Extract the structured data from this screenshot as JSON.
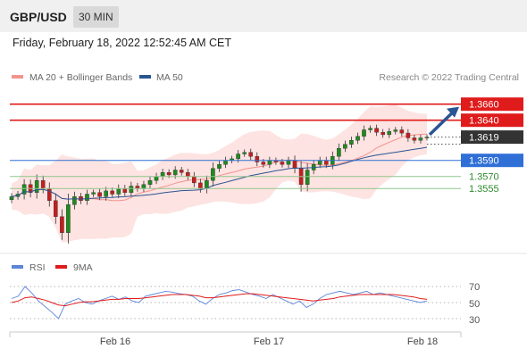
{
  "header": {
    "symbol": "GBP/USD",
    "timeframe": "30 MIN"
  },
  "timestamp": "Friday, February 18, 2022 12:52:45 AM CET",
  "legend": {
    "items": [
      {
        "label": "MA 20 + Bollinger Bands",
        "color": "#f4938c"
      },
      {
        "label": "MA 50",
        "color": "#2a5593"
      }
    ],
    "source": "Research © 2022 Trading Central"
  },
  "rsi_legend": {
    "items": [
      {
        "label": "RSI",
        "color": "#5b85d9"
      },
      {
        "label": "9MA",
        "color": "#e01b1b"
      }
    ]
  },
  "chart_data": {
    "type": "candlestick",
    "x_labels": [
      "Feb 16",
      "Feb 17",
      "Feb 18"
    ],
    "ylim": [
      1.3483,
      1.3683
    ],
    "current_price": "1.3619",
    "levels": [
      {
        "label": "1.3660",
        "value": 1.366,
        "type": "resistance",
        "color": "#e01b1b"
      },
      {
        "label": "1.3640",
        "value": 1.364,
        "type": "resistance",
        "color": "#e01b1b"
      },
      {
        "label": "1.3590",
        "value": 1.359,
        "type": "pivot",
        "color": "#2f6fd6"
      },
      {
        "label": "1.3570",
        "value": 1.357,
        "type": "support",
        "color": "#2e8b2e"
      },
      {
        "label": "1.3555",
        "value": 1.3555,
        "type": "support",
        "color": "#2e8b2e"
      }
    ],
    "close_series": [
      1.3545,
      1.3548,
      1.356,
      1.355,
      1.3565,
      1.3555,
      1.354,
      1.352,
      1.35,
      1.3535,
      1.3545,
      1.354,
      1.3548,
      1.355,
      1.3545,
      1.3552,
      1.3548,
      1.3555,
      1.355,
      1.3558,
      1.3555,
      1.356,
      1.3565,
      1.357,
      1.3575,
      1.3572,
      1.3578,
      1.3575,
      1.357,
      1.3562,
      1.3555,
      1.3565,
      1.358,
      1.3585,
      1.359,
      1.3592,
      1.3598,
      1.36,
      1.3595,
      1.3588,
      1.3585,
      1.359,
      1.3588,
      1.3585,
      1.359,
      1.358,
      1.356,
      1.3578,
      1.3585,
      1.359,
      1.3585,
      1.3595,
      1.3605,
      1.361,
      1.3615,
      1.362,
      1.3628,
      1.363,
      1.3625,
      1.3622,
      1.3626,
      1.3628,
      1.3624,
      1.3618,
      1.3615,
      1.3618,
      1.3619
    ],
    "rsi": {
      "levels": [
        70,
        50,
        30
      ],
      "ylim": [
        20,
        80
      ],
      "rsi_series": [
        55,
        58,
        70,
        62,
        52,
        45,
        38,
        30,
        48,
        52,
        55,
        50,
        48,
        52,
        55,
        58,
        54,
        57,
        52,
        50,
        58,
        60,
        62,
        64,
        63,
        61,
        60,
        58,
        52,
        48,
        55,
        60,
        62,
        65,
        66,
        63,
        60,
        58,
        55,
        60,
        56,
        52,
        48,
        52,
        44,
        48,
        55,
        60,
        62,
        64,
        62,
        60,
        62,
        64,
        60,
        62,
        60,
        58,
        56,
        54,
        52,
        50,
        52
      ],
      "ma_series": [
        50,
        52,
        56,
        57,
        55,
        53,
        50,
        47,
        46,
        48,
        50,
        51,
        51,
        52,
        53,
        54,
        54,
        55,
        55,
        55,
        56,
        57,
        58,
        59,
        60,
        60,
        60,
        59,
        58,
        56,
        56,
        57,
        58,
        59,
        60,
        61,
        61,
        60,
        59,
        58,
        57,
        56,
        55,
        54,
        53,
        52,
        53,
        54,
        55,
        57,
        58,
        59,
        60,
        60,
        60,
        60,
        60,
        60,
        59,
        58,
        57,
        55,
        54
      ]
    }
  }
}
